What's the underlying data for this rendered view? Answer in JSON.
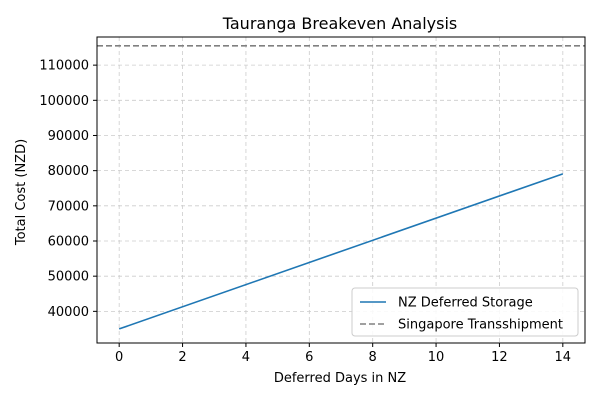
{
  "chart_data": {
    "type": "line",
    "title": "Tauranga Breakeven Analysis",
    "xlabel": "Deferred Days in NZ",
    "ylabel": "Total Cost (NZD)",
    "xlim": [
      -0.7,
      14.7
    ],
    "ylim": [
      31000,
      118000
    ],
    "xticks": [
      0,
      2,
      4,
      6,
      8,
      10,
      12,
      14
    ],
    "yticks": [
      40000,
      50000,
      60000,
      70000,
      80000,
      90000,
      100000,
      110000
    ],
    "grid": true,
    "legend_position": "bottom-right",
    "series": [
      {
        "name": "NZ Deferred Storage",
        "style": "solid",
        "color": "#1f77b4",
        "x": [
          0,
          14
        ],
        "y": [
          35000,
          79100
        ]
      },
      {
        "name": "Singapore Transshipment",
        "style": "dashed",
        "color": "#808080",
        "constant": 115500
      }
    ]
  }
}
